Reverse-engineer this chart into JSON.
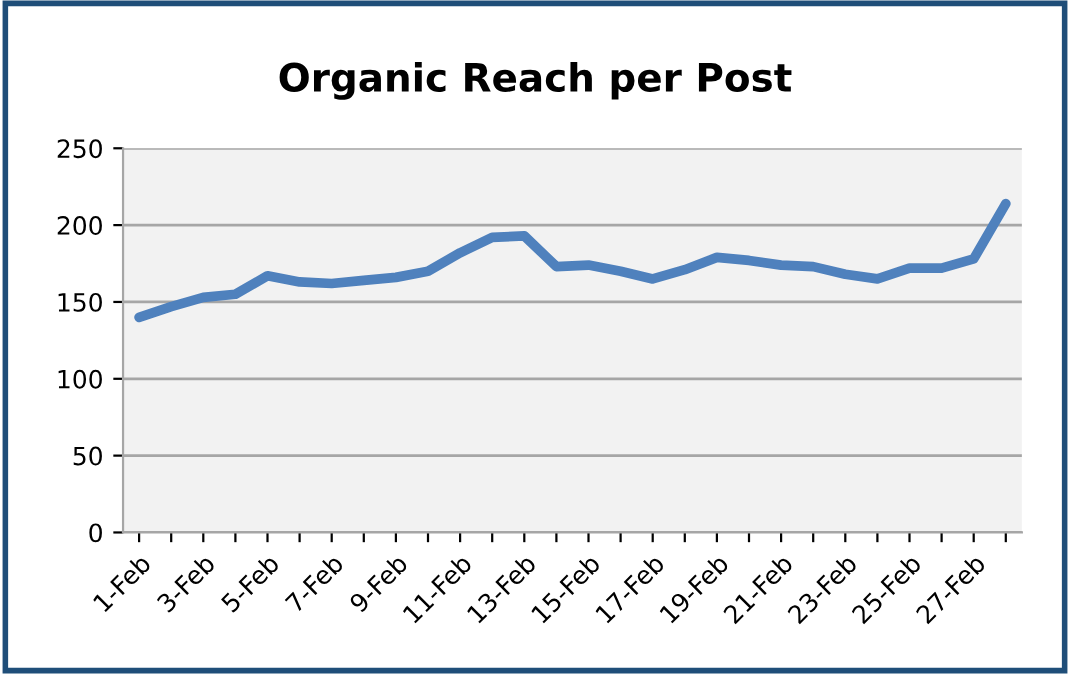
{
  "chart_data": {
    "type": "line",
    "title": "Organic Reach per Post",
    "categories": [
      "1-Feb",
      null,
      "3-Feb",
      null,
      "5-Feb",
      null,
      "7-Feb",
      null,
      "9-Feb",
      null,
      "11-Feb",
      null,
      "13-Feb",
      null,
      "15-Feb",
      null,
      "17-Feb",
      null,
      "19-Feb",
      null,
      "21-Feb",
      null,
      "23-Feb",
      null,
      "25-Feb",
      null,
      "27-Feb",
      null
    ],
    "series": [
      {
        "color": "#4f81bd",
        "values": [
          140,
          147,
          153,
          155,
          167,
          163,
          162,
          164,
          166,
          170,
          182,
          192,
          193,
          173,
          174,
          170,
          165,
          171,
          179,
          177,
          174,
          173,
          168,
          165,
          172,
          172,
          178,
          214
        ]
      }
    ],
    "ylim": [
      0,
      250
    ],
    "yticks": [
      0,
      50,
      100,
      150,
      200,
      250
    ],
    "grid": "y",
    "marker": "none",
    "line_style": "solid"
  }
}
